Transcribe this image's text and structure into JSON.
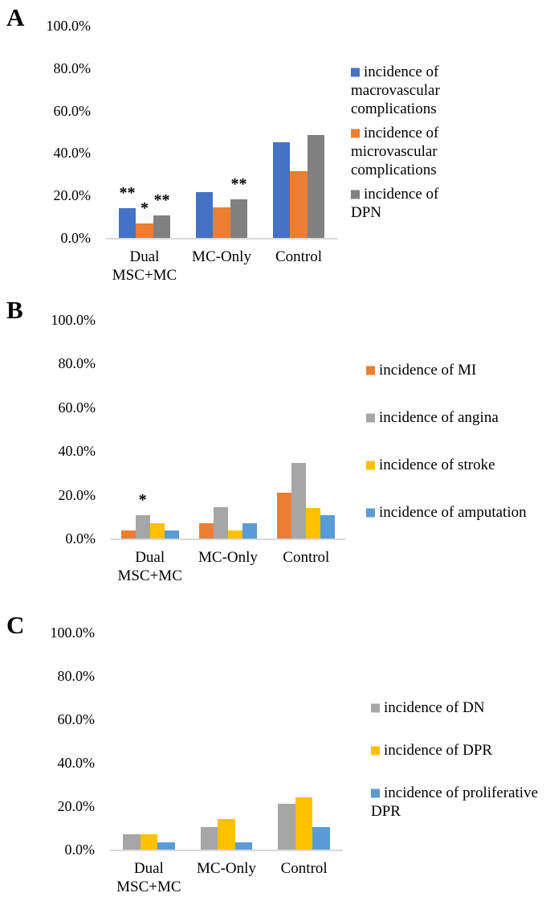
{
  "figure": {
    "background": "#FFFFFF",
    "axis_line_color": "#D9D9D9",
    "text_color": "#000000"
  },
  "chart_data": [
    {
      "panel": "A",
      "type": "bar",
      "grid": false,
      "legend_position": "right",
      "ylim": [
        0,
        100
      ],
      "yticks": [
        "100.0%",
        "80.0%",
        "60.0%",
        "40.0%",
        "20.0%",
        "0.0%"
      ],
      "categories": [
        "Dual\nMSC+MC",
        "MC-Only",
        "Control"
      ],
      "series": [
        {
          "name": "incidence of macrovascular complications",
          "color": "#4472C4",
          "values": [
            14,
            21.5,
            45
          ]
        },
        {
          "name": "incidence of microvascular complications",
          "color": "#ED7D31",
          "values": [
            7,
            14.5,
            31.5
          ]
        },
        {
          "name": "incidence of DPN",
          "color": "#808080",
          "values": [
            10.5,
            18,
            48.5
          ]
        }
      ],
      "annotations": [
        {
          "category": 0,
          "series": 0,
          "text": "**"
        },
        {
          "category": 0,
          "series": 1,
          "text": "*"
        },
        {
          "category": 0,
          "series": 2,
          "text": "**"
        },
        {
          "category": 1,
          "series": 2,
          "text": "**"
        }
      ]
    },
    {
      "panel": "B",
      "type": "bar",
      "grid": false,
      "legend_position": "right",
      "ylim": [
        0,
        100
      ],
      "yticks": [
        "100.0%",
        "80.0%",
        "60.0%",
        "40.0%",
        "20.0%",
        "0.0%"
      ],
      "categories": [
        "Dual\nMSC+MC",
        "MC-Only",
        "Control"
      ],
      "series": [
        {
          "name": "incidence of MI",
          "color": "#ED7D31",
          "values": [
            3.5,
            7,
            21
          ]
        },
        {
          "name": "incidence of angina",
          "color": "#A6A6A6",
          "values": [
            10.5,
            14.5,
            34.5
          ]
        },
        {
          "name": "incidence of stroke",
          "color": "#FFC000",
          "values": [
            7,
            3.5,
            14
          ]
        },
        {
          "name": "incidence of amputation",
          "color": "#5B9BD5",
          "values": [
            3.5,
            7,
            10.5
          ]
        }
      ],
      "annotations": [
        {
          "category": 0,
          "series": 1,
          "text": "*"
        }
      ]
    },
    {
      "panel": "C",
      "type": "bar",
      "grid": false,
      "legend_position": "right",
      "ylim": [
        0,
        100
      ],
      "yticks": [
        "100.0%",
        "80.0%",
        "60.0%",
        "40.0%",
        "20.0%",
        "0.0%"
      ],
      "categories": [
        "Dual\nMSC+MC",
        "MC-Only",
        "Control"
      ],
      "series": [
        {
          "name": "incidence of DN",
          "color": "#A6A6A6",
          "values": [
            7,
            10.5,
            21
          ]
        },
        {
          "name": "incidence of DPR",
          "color": "#FFC000",
          "values": [
            7,
            14,
            24
          ]
        },
        {
          "name": "incidence of proliferative DPR",
          "color": "#5B9BD5",
          "values": [
            3.5,
            3.5,
            10.5
          ]
        }
      ],
      "annotations": []
    }
  ]
}
